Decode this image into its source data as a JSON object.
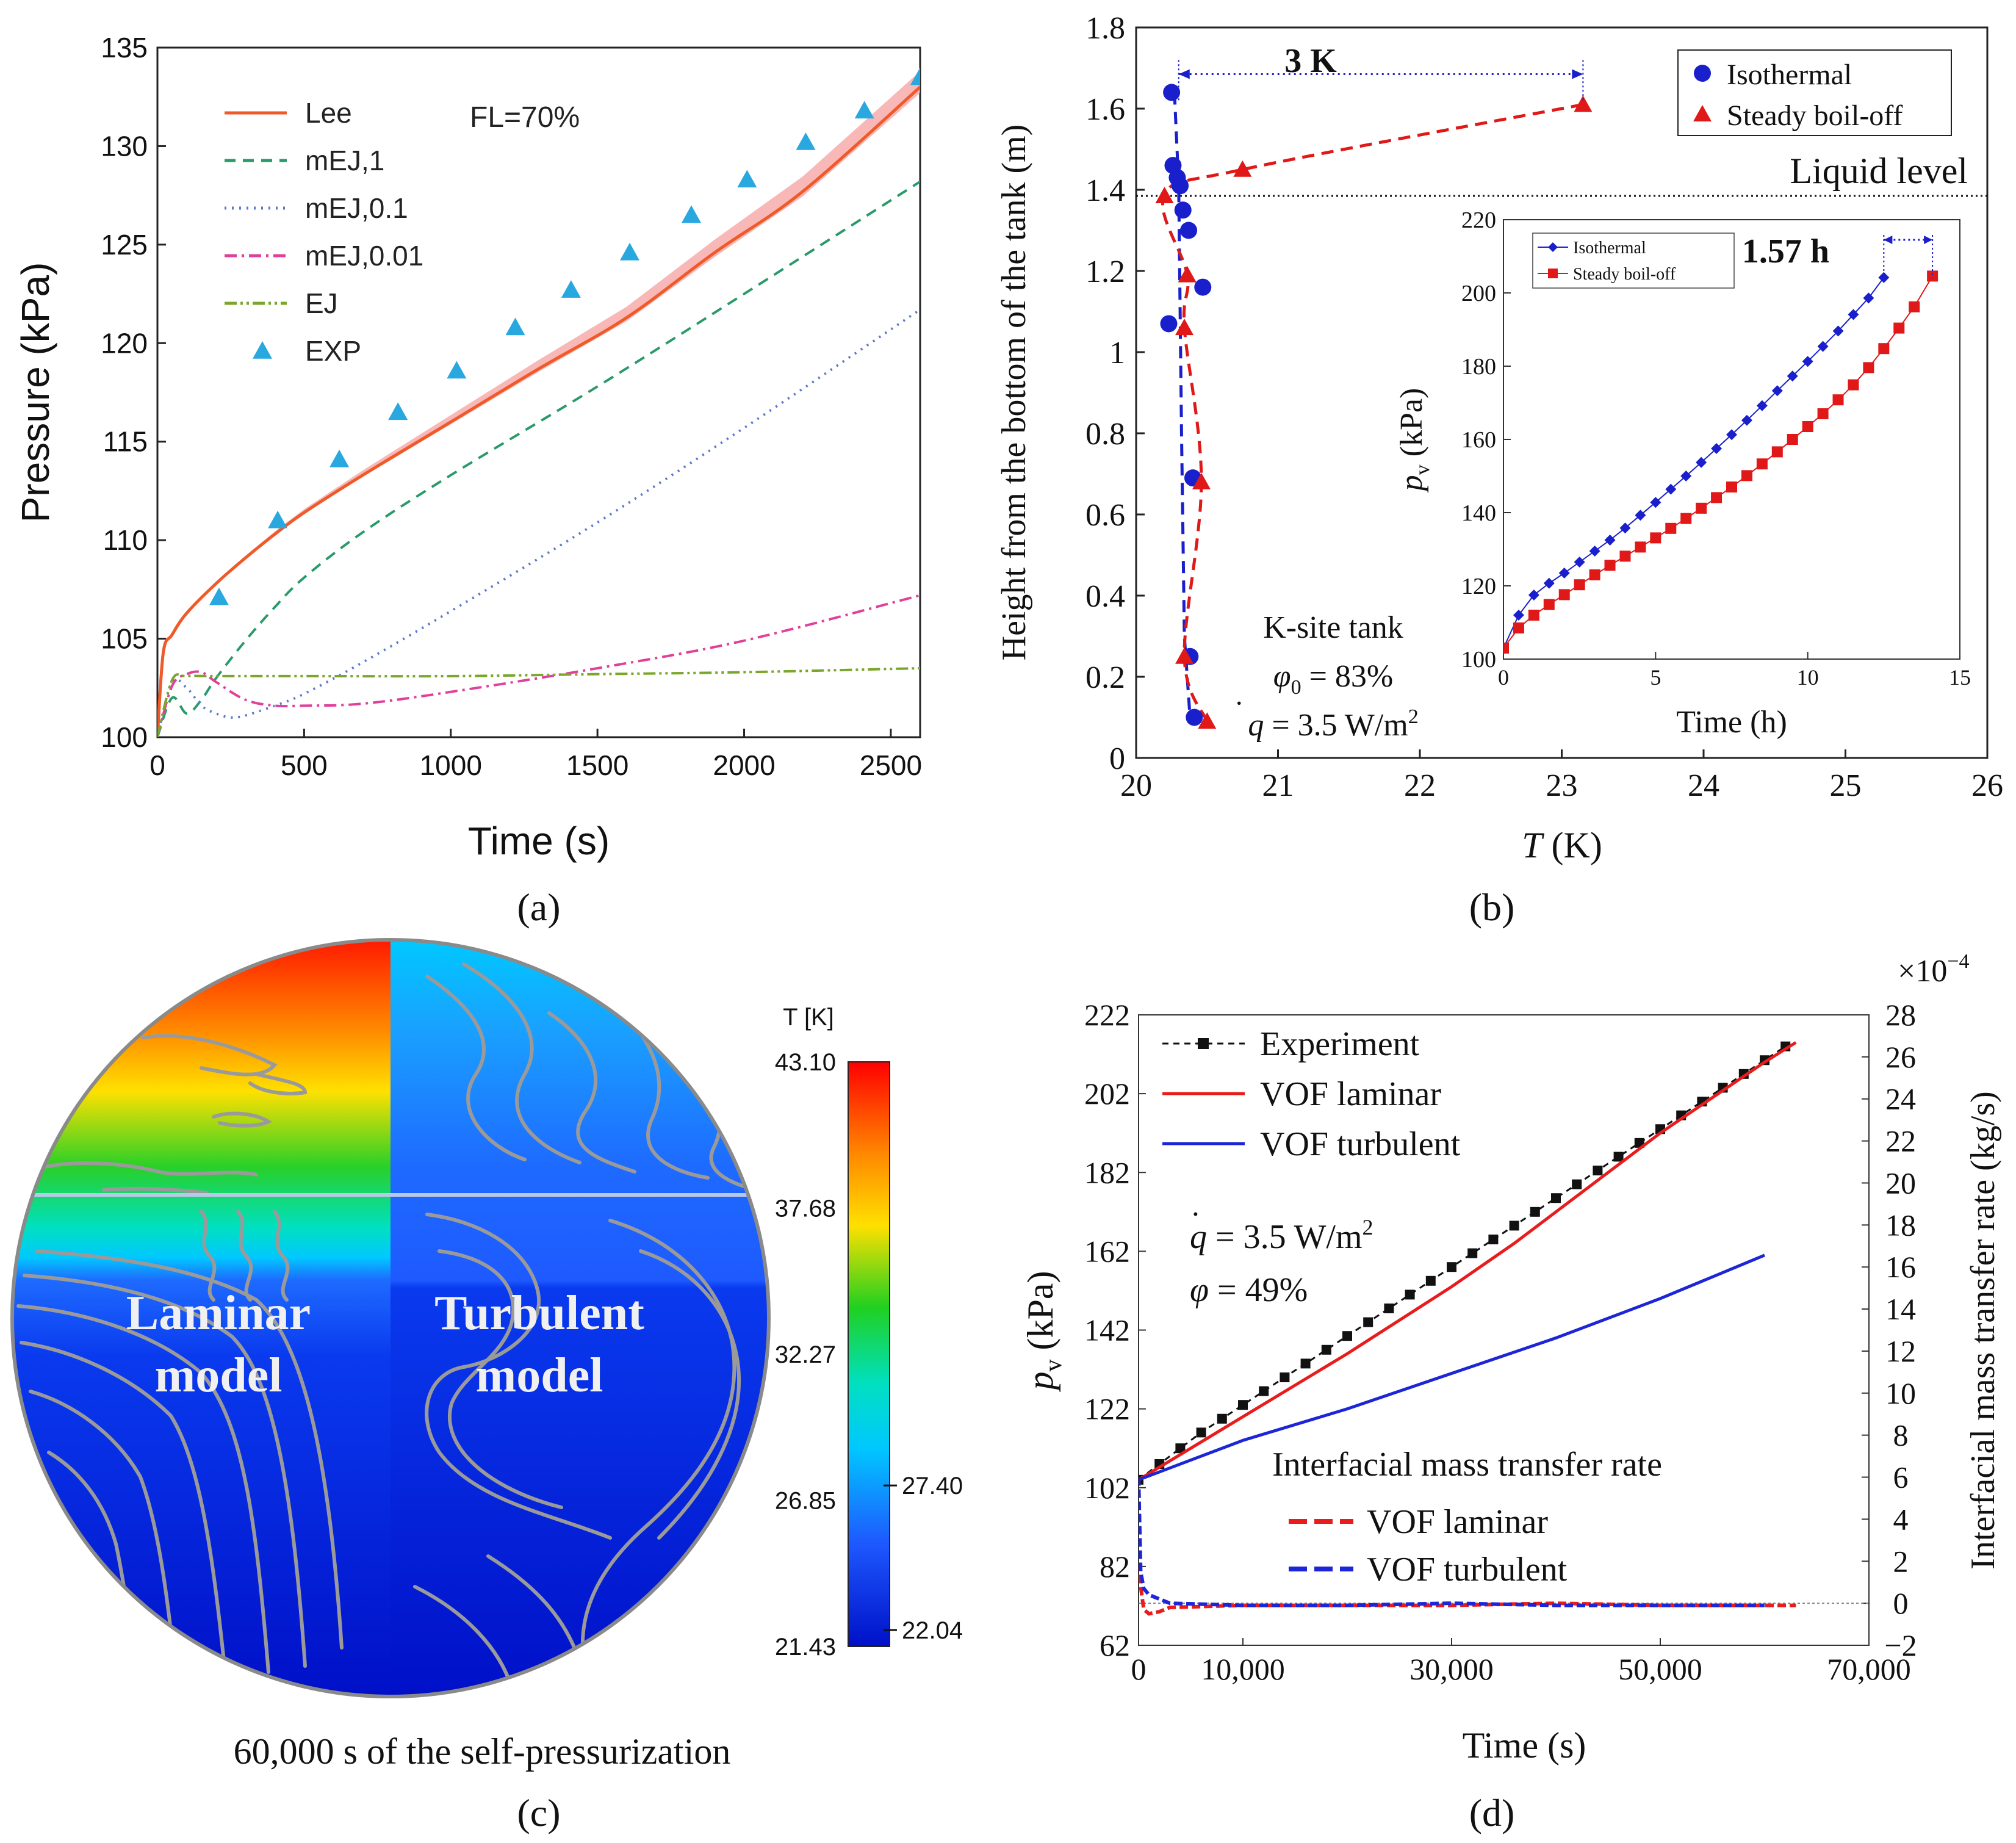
{
  "panel_labels": {
    "a": "(a)",
    "b": "(b)",
    "c": "(c)",
    "d": "(d)"
  },
  "chart_data": [
    {
      "id": "a",
      "type": "line",
      "title": "",
      "xlabel": "Time (s)",
      "ylabel": "Pressure (kPa)",
      "xlim": [
        0,
        2600
      ],
      "ylim": [
        100,
        135
      ],
      "xticks": [
        0,
        500,
        1000,
        1500,
        2000,
        2500
      ],
      "yticks": [
        100,
        105,
        110,
        115,
        120,
        125,
        130,
        135
      ],
      "annotation": "FL=70%",
      "legend_location": "top-left",
      "series": [
        {
          "name": "Lee",
          "style": "solid",
          "color": "#f05a28",
          "x": [
            0,
            20,
            50,
            100,
            200,
            300,
            400,
            500,
            700,
            1000,
            1300,
            1600,
            1900,
            2200,
            2600
          ],
          "y": [
            100,
            104.3,
            105.2,
            106.3,
            107.8,
            109.1,
            110.3,
            111.4,
            113.3,
            116.0,
            118.7,
            121.3,
            124.6,
            127.7,
            133.0
          ]
        },
        {
          "name": "mEJ,1",
          "style": "dashed",
          "color": "#2a9a6a",
          "x": [
            0,
            50,
            100,
            150,
            200,
            300,
            400,
            500,
            700,
            1000,
            1500,
            2000,
            2600
          ],
          "y": [
            100,
            102.0,
            101.2,
            101.9,
            103.0,
            104.9,
            106.6,
            108.1,
            110.4,
            113.3,
            117.8,
            122.5,
            128.2
          ]
        },
        {
          "name": "mEJ,0.1",
          "style": "dotted",
          "color": "#5b79c9",
          "x": [
            0,
            50,
            100,
            150,
            200,
            250,
            300,
            400,
            500,
            700,
            1000,
            1500,
            2000,
            2600
          ],
          "y": [
            100,
            102.8,
            102.5,
            101.6,
            101.2,
            101.0,
            101.1,
            101.6,
            102.2,
            103.8,
            106.4,
            110.9,
            115.7,
            121.7
          ]
        },
        {
          "name": "mEJ,0.01",
          "style": "dashdot",
          "color": "#e0409a",
          "x": [
            0,
            50,
            100,
            150,
            200,
            300,
            400,
            500,
            700,
            1000,
            1500,
            2000,
            2600
          ],
          "y": [
            100,
            102.6,
            103.2,
            103.3,
            102.8,
            101.9,
            101.6,
            101.6,
            101.7,
            102.3,
            103.5,
            104.9,
            107.2
          ]
        },
        {
          "name": "EJ",
          "style": "dashdotdot",
          "color": "#7aa62a",
          "x": [
            0,
            50,
            100,
            200,
            500,
            1000,
            1500,
            2000,
            2600
          ],
          "y": [
            100,
            102.9,
            103.1,
            103.1,
            103.1,
            103.1,
            103.2,
            103.3,
            103.5
          ]
        },
        {
          "name": "EXP",
          "style": "markers",
          "color": "#29a8e0",
          "x": [
            210,
            410,
            620,
            820,
            1020,
            1220,
            1410,
            1610,
            1820,
            2010,
            2210,
            2410,
            2600
          ],
          "y": [
            107.1,
            111.0,
            114.1,
            116.5,
            118.6,
            120.8,
            122.7,
            124.6,
            126.5,
            128.3,
            130.2,
            131.8,
            133.5
          ]
        }
      ]
    },
    {
      "id": "b",
      "type": "scatter",
      "xlabel_italic": "T",
      "xlabel_unit": "(K)",
      "ylabel": "Height from the bottom of the tank  (m)",
      "xlim": [
        20,
        26
      ],
      "ylim": [
        0,
        1.8
      ],
      "xticks": [
        20,
        21,
        22,
        23,
        24,
        25,
        26
      ],
      "yticks": [
        0,
        0.2,
        0.4,
        0.6,
        0.8,
        1,
        1.2,
        1.4,
        1.6,
        1.8
      ],
      "ytick_labels": [
        "0",
        "0.2",
        "0.4",
        "0.6",
        "0.8",
        "1",
        "1.2",
        "1.4",
        "1.6",
        "1.8"
      ],
      "liquid_level": 1.385,
      "liquid_level_label": "Liquid level",
      "delta_label": "3 K",
      "legend_location": "top-right",
      "series": [
        {
          "name": "Isothermal",
          "marker": "circle",
          "color": "#1a1fcc",
          "x": [
            20.25,
            20.26,
            20.29,
            20.31,
            20.33,
            20.37,
            20.47,
            20.23,
            20.4,
            20.38,
            20.41
          ],
          "y": [
            1.64,
            1.46,
            1.43,
            1.41,
            1.35,
            1.3,
            1.16,
            1.07,
            0.69,
            0.25,
            0.1
          ]
        },
        {
          "name": "Steady boil-off",
          "marker": "triangle",
          "color": "#e01818",
          "x": [
            23.15,
            20.75,
            20.2,
            20.36,
            20.34,
            20.46,
            20.34,
            20.5
          ],
          "y": [
            1.61,
            1.45,
            1.385,
            1.19,
            1.06,
            0.68,
            0.25,
            0.09
          ]
        }
      ],
      "annotations": {
        "tank": "K-site tank",
        "phi_symbol": "φ",
        "phi_sub": "0",
        "phi_value": " = 83%",
        "q_symbol": "q",
        "q_value": " = 3.5 W/m",
        "q_exp": "2"
      }
    },
    {
      "id": "b-inset",
      "type": "line",
      "xlabel": "Time  (h)",
      "ylabel_symbol": "p",
      "ylabel_sub": "v",
      "ylabel_unit": "(kPa)",
      "xlim": [
        0,
        15
      ],
      "ylim": [
        100,
        220
      ],
      "xticks": [
        0,
        5,
        10,
        15
      ],
      "yticks": [
        100,
        120,
        140,
        160,
        180,
        200,
        220
      ],
      "delta_label": "1.57 h",
      "series": [
        {
          "name": "Isothermal",
          "marker": "diamond",
          "color": "#1a1fcc",
          "x": [
            0,
            0.5,
            1,
            1.5,
            2,
            2.5,
            3,
            3.5,
            4,
            4.5,
            5,
            5.5,
            6,
            6.5,
            7,
            7.5,
            8,
            8.5,
            9,
            9.5,
            10,
            10.5,
            11,
            11.5,
            12,
            12.5
          ],
          "y": [
            103.0,
            112.0,
            117.5,
            120.7,
            123.5,
            126.5,
            129.5,
            132.5,
            135.8,
            139.3,
            142.8,
            146.4,
            150.0,
            153.7,
            157.5,
            161.3,
            165.2,
            169.2,
            173.3,
            177.3,
            181.3,
            185.4,
            189.6,
            194.1,
            198.6,
            204.2
          ]
        },
        {
          "name": "Steady boil-off",
          "marker": "square",
          "color": "#e01818",
          "x": [
            0,
            0.5,
            1,
            1.5,
            2,
            2.5,
            3,
            3.5,
            4,
            4.5,
            5,
            5.5,
            6,
            6.5,
            7,
            7.5,
            8,
            8.5,
            9,
            9.5,
            10,
            10.5,
            11,
            11.5,
            12,
            12.5,
            13,
            13.5,
            14.1
          ],
          "y": [
            103.0,
            108.5,
            112.0,
            114.9,
            117.6,
            120.3,
            123.0,
            125.6,
            128.1,
            130.6,
            133.1,
            135.7,
            138.4,
            141.2,
            144.1,
            147.0,
            150.1,
            153.3,
            156.6,
            160.0,
            163.5,
            167.0,
            170.8,
            174.9,
            179.6,
            184.8,
            190.4,
            196.2,
            204.6
          ]
        }
      ]
    },
    {
      "id": "c",
      "type": "heatmap",
      "colorbar_title": "T [K]",
      "colorbar_labels": [
        "43.10",
        "37.68",
        "32.27",
        "26.85",
        "21.43"
      ],
      "colorbar_values": [
        43.1,
        37.68,
        32.27,
        26.85,
        21.43
      ],
      "colorbar_markers": [
        {
          "label": "27.40",
          "value": 27.4
        },
        {
          "label": "22.04",
          "value": 22.04
        }
      ],
      "left_label": [
        "Laminar",
        "model"
      ],
      "right_label": [
        "Turbulent",
        "model"
      ],
      "caption": "60,000 s of the self-pressurization"
    },
    {
      "id": "d",
      "type": "line",
      "xlabel": "Time (s)",
      "ylabel_symbol": "p",
      "ylabel_sub": "v",
      "ylabel_unit": "(kPa)",
      "y2label": "Interfacial mass transfer rate (kg/s)",
      "y2_multiplier": "×10",
      "y2_multiplier_exp": "−4",
      "xlim": [
        0,
        70000
      ],
      "ylim": [
        62,
        222
      ],
      "y2lim": [
        -2,
        28
      ],
      "xticks": [
        0,
        10000,
        30000,
        50000,
        70000
      ],
      "xtick_labels": [
        "0",
        "10,000",
        "30,000",
        "50,000",
        "70,000"
      ],
      "yticks": [
        62,
        82,
        102,
        122,
        142,
        162,
        182,
        202,
        222
      ],
      "y2ticks": [
        -2,
        0,
        2,
        4,
        6,
        8,
        10,
        12,
        14,
        16,
        18,
        20,
        22,
        24,
        26,
        28
      ],
      "y2tick_labels": [
        "−2",
        "0",
        "2",
        "4",
        "6",
        "8",
        "10",
        "12",
        "14",
        "16",
        "18",
        "20",
        "22",
        "24",
        "26",
        "28"
      ],
      "legend_location": "top-left",
      "mass_transfer_legend_title": "Interfacial mass transfer rate",
      "annotations": {
        "q_symbol": "q",
        "q_value": " = 3.5 W/m",
        "q_exp": "2",
        "phi_symbol": "φ",
        "phi_value": " = 49%"
      },
      "series": [
        {
          "name": "Experiment",
          "axis": "left",
          "style": "dashed-markers",
          "color": "#111111",
          "x": [
            0,
            2000,
            4000,
            6000,
            8000,
            10000,
            12000,
            14000,
            16000,
            18000,
            20000,
            22000,
            24000,
            26000,
            28000,
            30000,
            32000,
            34000,
            36000,
            38000,
            40000,
            42000,
            44000,
            46000,
            48000,
            50000,
            52000,
            54000,
            56000,
            58000,
            60000,
            62000
          ],
          "y": [
            104,
            108,
            112,
            116,
            119.5,
            123,
            126.5,
            130,
            133.5,
            137,
            140.5,
            144,
            147.5,
            151,
            154.5,
            158,
            161.5,
            165,
            168.5,
            172,
            175.5,
            179,
            182.5,
            186,
            189.5,
            193,
            196.5,
            200,
            203.5,
            207,
            210.5,
            214
          ]
        },
        {
          "name": "VOF laminar",
          "axis": "left",
          "style": "solid",
          "color": "#e81c1c",
          "x": [
            0,
            5000,
            10000,
            20000,
            30000,
            36000,
            40000,
            50000,
            60000,
            63000
          ],
          "y": [
            104,
            112,
            120,
            136,
            153,
            164,
            172,
            192,
            210,
            215
          ]
        },
        {
          "name": "VOF turbulent",
          "axis": "left",
          "style": "solid",
          "color": "#1d26d6",
          "x": [
            0,
            5000,
            10000,
            20000,
            30000,
            40000,
            50000,
            60000
          ],
          "y": [
            104,
            109,
            114,
            122,
            131,
            140,
            150,
            161
          ]
        },
        {
          "name": "VOF laminar",
          "axis": "right",
          "style": "dashed",
          "color": "#e81c1c",
          "x": [
            0,
            200,
            500,
            1000,
            2000,
            3000,
            10000,
            20000,
            30000,
            40000,
            50000,
            60000,
            63000
          ],
          "y": [
            6.0,
            0.8,
            -0.3,
            -0.5,
            -0.4,
            -0.2,
            -0.1,
            -0.1,
            -0.1,
            0.0,
            -0.1,
            -0.1,
            -0.1
          ]
        },
        {
          "name": "VOF turbulent",
          "axis": "right",
          "style": "dashed",
          "color": "#1d26d6",
          "x": [
            0,
            200,
            500,
            1000,
            2000,
            3000,
            10000,
            20000,
            30000,
            40000,
            50000,
            60000
          ],
          "y": [
            6.0,
            1.5,
            0.7,
            0.4,
            0.2,
            0.0,
            -0.1,
            -0.1,
            0.0,
            -0.1,
            -0.1,
            -0.1
          ]
        }
      ]
    }
  ]
}
